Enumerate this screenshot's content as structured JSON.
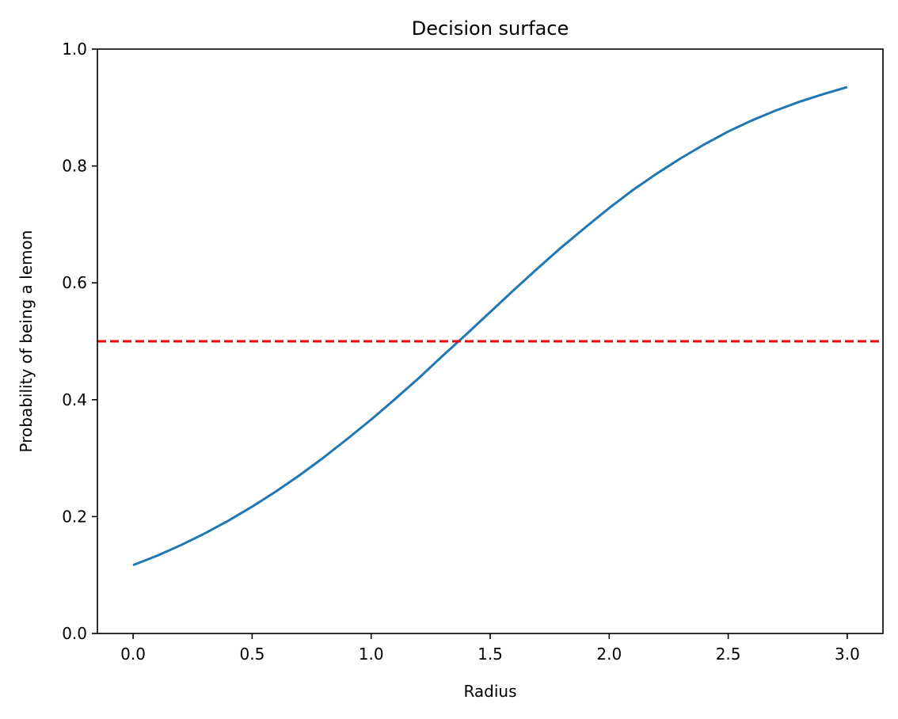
{
  "chart_data": {
    "type": "line",
    "title": "Decision surface",
    "xlabel": "Radius",
    "ylabel": "Probability of being a lemon",
    "xlim": [
      -0.15,
      3.15
    ],
    "ylim": [
      0.0,
      1.0
    ],
    "x_ticks": [
      0.0,
      0.5,
      1.0,
      1.5,
      2.0,
      2.5,
      3.0
    ],
    "x_tick_labels": [
      "0.0",
      "0.5",
      "1.0",
      "1.5",
      "2.0",
      "2.5",
      "3.0"
    ],
    "y_ticks": [
      0.0,
      0.2,
      0.4,
      0.6,
      0.8,
      1.0
    ],
    "y_tick_labels": [
      "0.0",
      "0.2",
      "0.4",
      "0.6",
      "0.8",
      "1.0"
    ],
    "grid": false,
    "series": [
      {
        "color": "#1f77b4",
        "style": "solid",
        "x": [
          0.0,
          0.1,
          0.2,
          0.3,
          0.4,
          0.5,
          0.6,
          0.7,
          0.8,
          0.9,
          1.0,
          1.1,
          1.2,
          1.3,
          1.4,
          1.5,
          1.6,
          1.7,
          1.8,
          1.9,
          2.0,
          2.1,
          2.2,
          2.3,
          2.4,
          2.5,
          2.6,
          2.7,
          2.8,
          2.9,
          3.0
        ],
        "y": [
          0.117,
          0.133,
          0.151,
          0.171,
          0.193,
          0.217,
          0.243,
          0.271,
          0.301,
          0.333,
          0.366,
          0.401,
          0.437,
          0.475,
          0.512,
          0.55,
          0.588,
          0.625,
          0.661,
          0.695,
          0.728,
          0.759,
          0.787,
          0.813,
          0.837,
          0.859,
          0.878,
          0.895,
          0.91,
          0.923,
          0.935
        ]
      },
      {
        "color": "#ff0000",
        "style": "dashed",
        "x": [
          -0.15,
          3.15
        ],
        "y": [
          0.5,
          0.5
        ]
      }
    ]
  }
}
